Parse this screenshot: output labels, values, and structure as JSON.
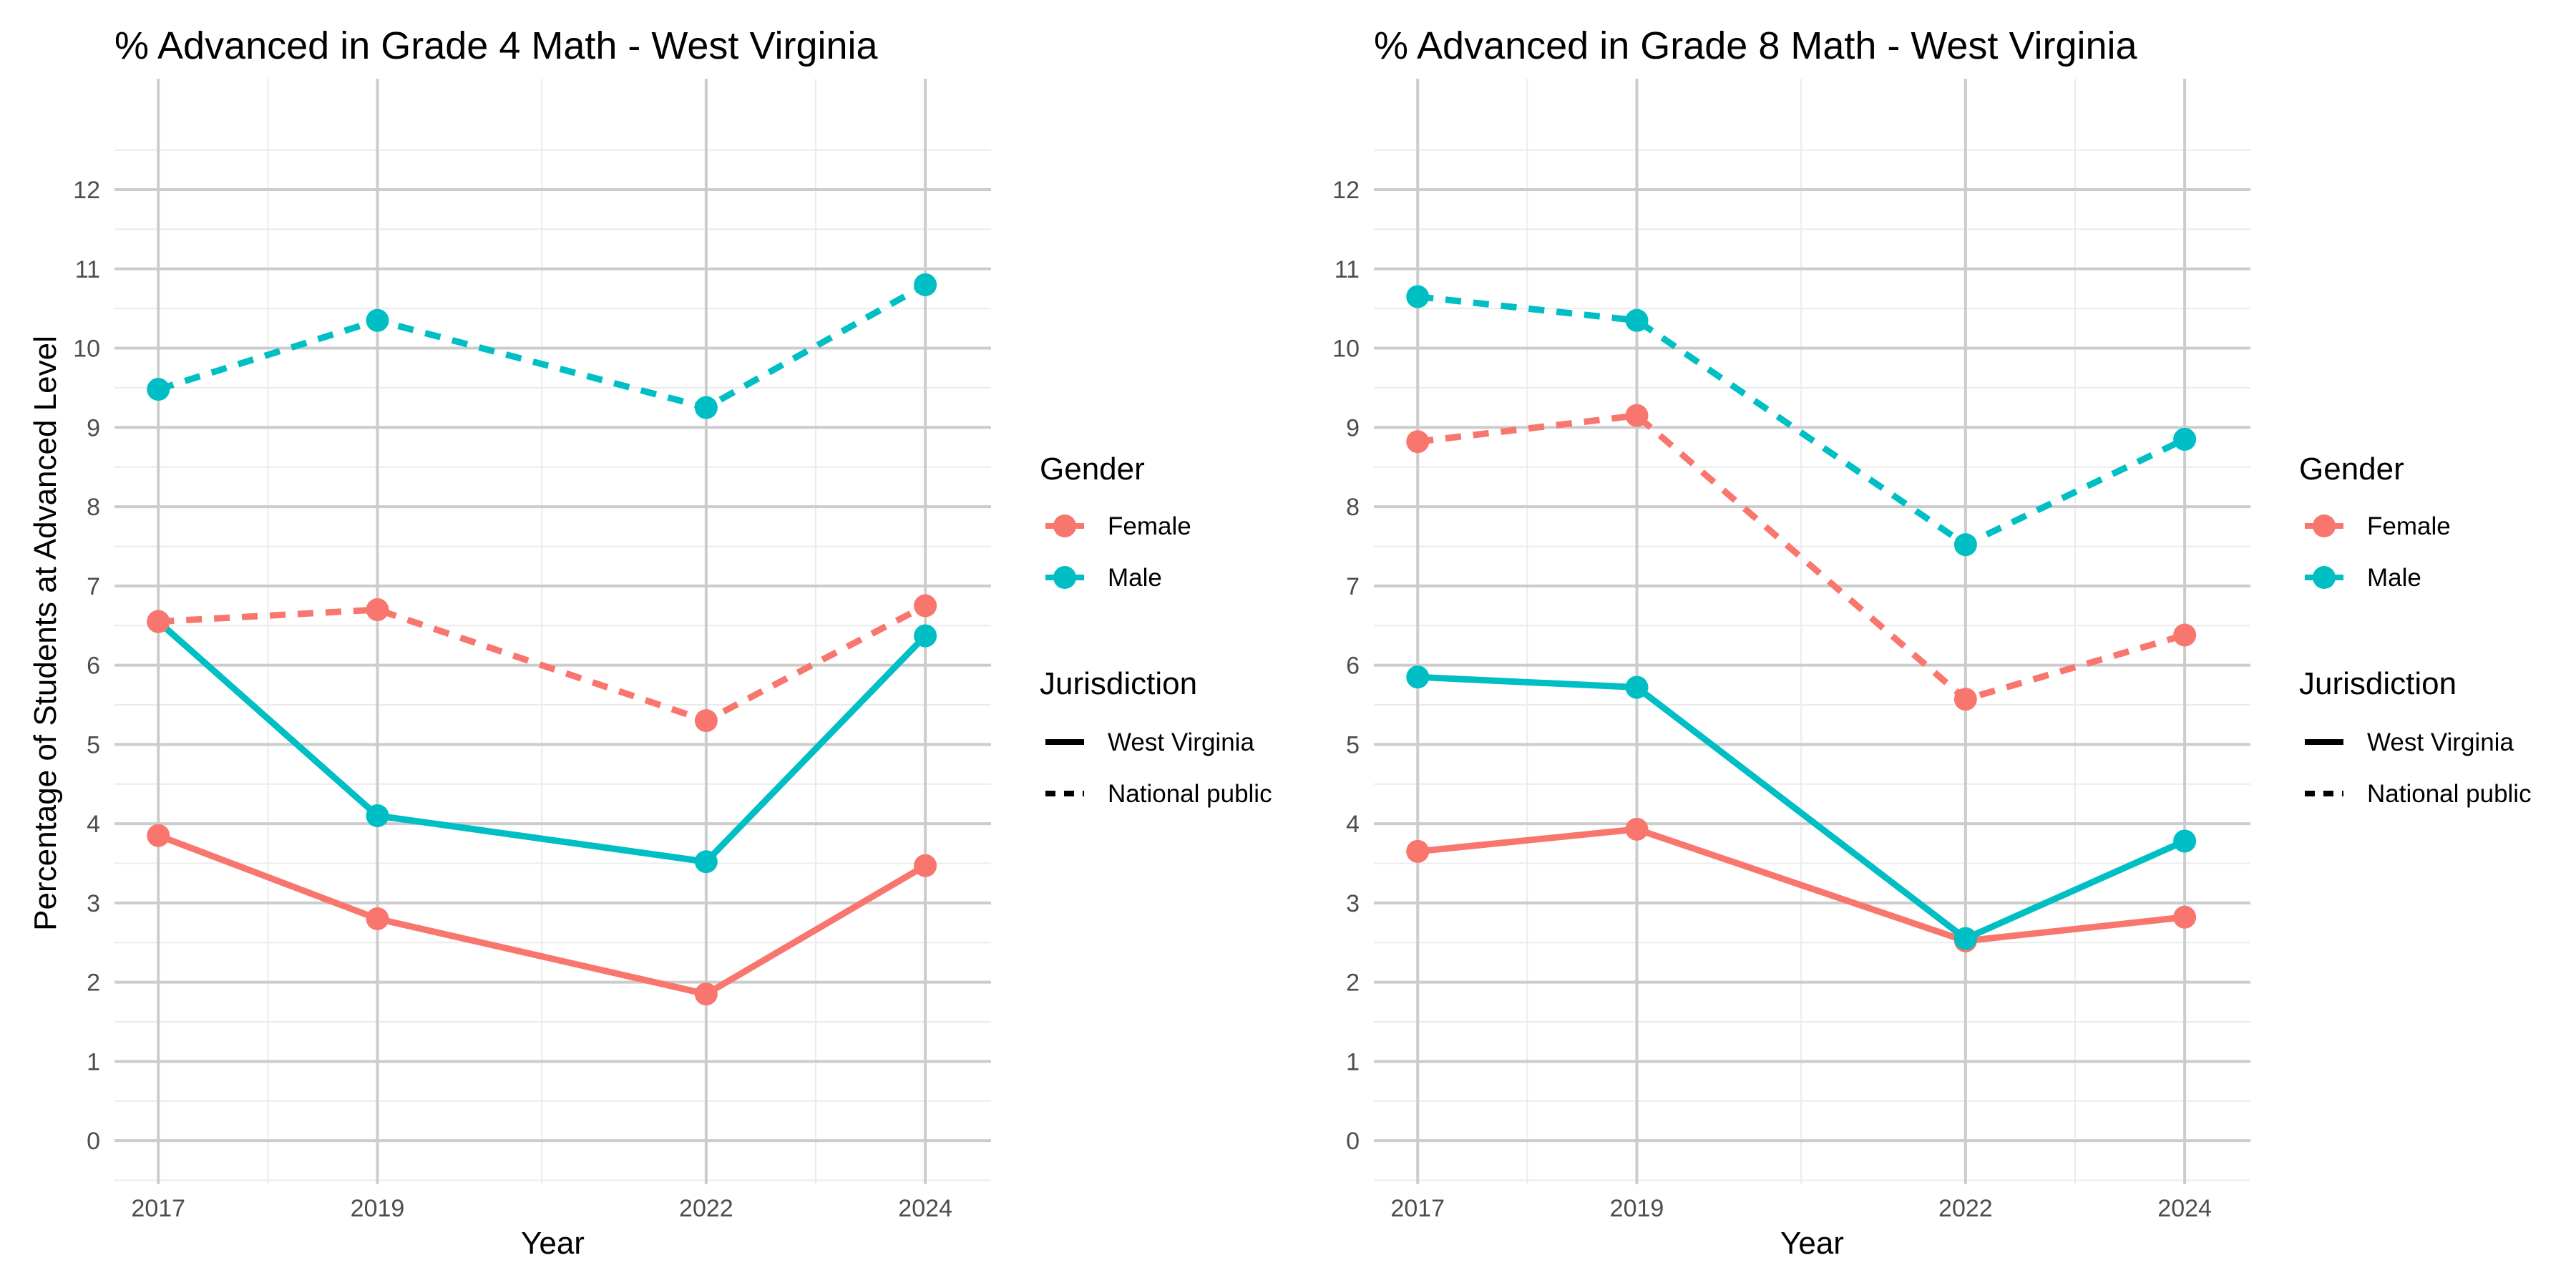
{
  "colors": {
    "female": "#F8766D",
    "male": "#00BFC4",
    "grid_major": "#cccccc",
    "grid_minor": "#ebebeb"
  },
  "shared": {
    "ylabel": "Percentage of Students at Advanced Level",
    "xlabel": "Year",
    "legend": {
      "gender_title": "Gender",
      "gender_items": [
        "Female",
        "Male"
      ],
      "jurisdiction_title": "Jurisdiction",
      "jurisdiction_items": [
        "West Virginia",
        "National public"
      ]
    }
  },
  "chart_data": [
    {
      "type": "line",
      "title": "% Advanced in Grade 4 Math - West Virginia",
      "xlabel": "Year",
      "ylabel": "Percentage of Students at Advanced Level",
      "x": [
        2017,
        2019,
        2022,
        2024
      ],
      "x_ticks": [
        "2017",
        "2019",
        "2022",
        "2024"
      ],
      "y_ticks": [
        "0",
        "1",
        "2",
        "3",
        "4",
        "5",
        "6",
        "7",
        "8",
        "9",
        "10",
        "11",
        "12"
      ],
      "ylim": [
        -0.55,
        13.4
      ],
      "grid": true,
      "legend_position": "right",
      "series": [
        {
          "name": "Female",
          "jurisdiction": "West Virginia",
          "color": "female",
          "dash": "solid",
          "values": [
            3.85,
            2.8,
            1.85,
            3.47
          ]
        },
        {
          "name": "Male",
          "jurisdiction": "West Virginia",
          "color": "male",
          "dash": "solid",
          "values": [
            6.55,
            4.1,
            3.52,
            6.37
          ]
        },
        {
          "name": "Female",
          "jurisdiction": "National public",
          "color": "female",
          "dash": "dashed",
          "values": [
            6.55,
            6.7,
            5.3,
            6.75
          ]
        },
        {
          "name": "Male",
          "jurisdiction": "National public",
          "color": "male",
          "dash": "dashed",
          "values": [
            9.48,
            10.35,
            9.25,
            10.8
          ]
        }
      ]
    },
    {
      "type": "line",
      "title": "% Advanced in Grade 8 Math - West Virginia",
      "xlabel": "Year",
      "ylabel": "",
      "x": [
        2017,
        2019,
        2022,
        2024
      ],
      "x_ticks": [
        "2017",
        "2019",
        "2022",
        "2024"
      ],
      "y_ticks": [
        "0",
        "1",
        "2",
        "3",
        "4",
        "5",
        "6",
        "7",
        "8",
        "9",
        "10",
        "11",
        "12"
      ],
      "ylim": [
        -0.55,
        13.4
      ],
      "grid": true,
      "legend_position": "right",
      "series": [
        {
          "name": "Female",
          "jurisdiction": "West Virginia",
          "color": "female",
          "dash": "solid",
          "values": [
            3.65,
            3.93,
            2.52,
            2.82
          ]
        },
        {
          "name": "Male",
          "jurisdiction": "West Virginia",
          "color": "male",
          "dash": "solid",
          "values": [
            5.85,
            5.72,
            2.55,
            3.78
          ]
        },
        {
          "name": "Female",
          "jurisdiction": "National public",
          "color": "female",
          "dash": "dashed",
          "values": [
            8.82,
            9.15,
            5.57,
            6.38
          ]
        },
        {
          "name": "Male",
          "jurisdiction": "National public",
          "color": "male",
          "dash": "dashed",
          "values": [
            10.65,
            10.35,
            7.52,
            8.85
          ]
        }
      ]
    }
  ]
}
